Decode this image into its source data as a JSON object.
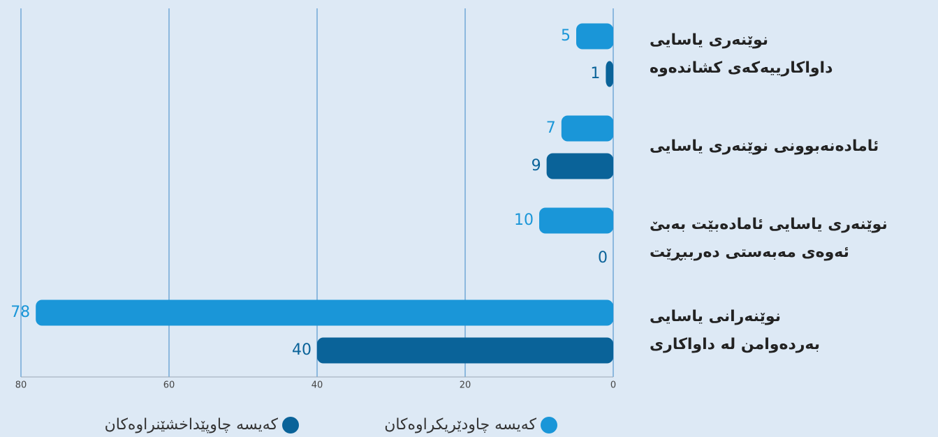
{
  "chart_data": {
    "type": "hbar",
    "categories": [
      [
        "نوێنەری یاسایی",
        "داواکارییەکەی کشاندەوە"
      ],
      [
        "ئامادەنەبوونی نوێنەری یاسایی"
      ],
      [
        "نوێنەری یاسایی ئامادەبێت بەبێ",
        "ئەوەی مەبەستی دەرببڕێت"
      ],
      [
        "نوێنەرانی یاسایی",
        "بەردەوامن لە داواکاری"
      ]
    ],
    "series": [
      {
        "name": "کەیسە چاودێریکراوەکان",
        "color": "#1a96d8",
        "values": [
          5,
          7,
          10,
          78
        ]
      },
      {
        "name": "کەیسە چاوپێداخشێنراوەکان",
        "color": "#0a6399",
        "values": [
          1,
          9,
          0,
          40
        ]
      }
    ],
    "xlim": [
      0,
      80
    ],
    "xticks": [
      0,
      20,
      40,
      60,
      80
    ],
    "x_reversed": true,
    "grid": true
  }
}
